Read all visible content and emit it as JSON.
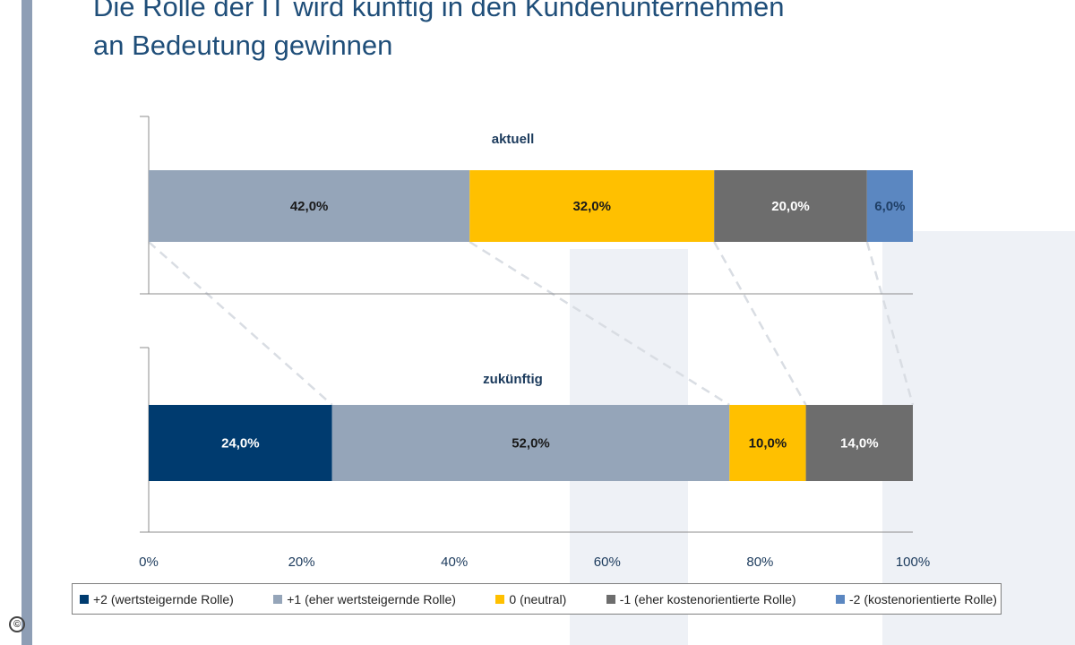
{
  "title_lines": [
    "Die Rolle der IT wird künftig in den Kundenunternehmen",
    "an Bedeutung gewinnen"
  ],
  "copyright_symbol": "©",
  "colors": {
    "plus2": "#003b6f",
    "plus1": "#95a5b9",
    "neutral": "#ffc000",
    "minus1": "#6d6d6d",
    "minus2": "#5b87c1",
    "title": "#1f4e79",
    "dashed": "#d9dde3"
  },
  "chart_data": {
    "type": "bar",
    "orientation": "horizontal",
    "stacked": true,
    "categories": [
      "aktuell",
      "zukünftig"
    ],
    "xlim": [
      0,
      100
    ],
    "x_ticks": [
      "0%",
      "20%",
      "40%",
      "60%",
      "80%",
      "100%"
    ],
    "legend_position": "bottom",
    "series": [
      {
        "name": "+2 (wertsteigernde Rolle)",
        "key": "plus2",
        "values": [
          0,
          24
        ],
        "labels": [
          "",
          "24,0%"
        ]
      },
      {
        "name": "+1 (eher wertsteigernde Rolle)",
        "key": "plus1",
        "values": [
          42,
          52
        ],
        "labels": [
          "42,0%",
          "52,0%"
        ]
      },
      {
        "name": "0 (neutral)",
        "key": "neutral",
        "values": [
          32,
          10
        ],
        "labels": [
          "32,0%",
          "10,0%"
        ]
      },
      {
        "name": "-1 (eher kostenorientierte Rolle)",
        "key": "minus1",
        "values": [
          20,
          14
        ],
        "labels": [
          "20,0%",
          "14,0%"
        ]
      },
      {
        "name": "-2 (kostenorientierte Rolle)",
        "key": "minus2",
        "values": [
          6,
          0
        ],
        "labels": [
          "6,0%",
          ""
        ]
      }
    ]
  }
}
